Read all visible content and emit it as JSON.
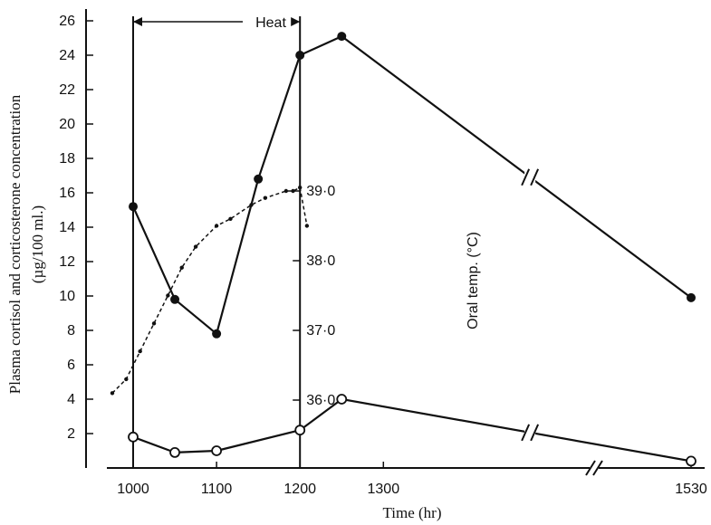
{
  "chart_data": {
    "type": "line",
    "xlabel": "Time (hr)",
    "ylabel": "Plasma cortisol and corticosterone concentration (µg/100 ml.)",
    "y2label": "Oral temp. (°C)",
    "x_ticks": [
      "1000",
      "1100",
      "1200",
      "1300",
      "1530"
    ],
    "y_ticks": [
      2,
      4,
      6,
      8,
      10,
      12,
      14,
      16,
      18,
      20,
      22,
      24,
      26
    ],
    "y2_ticks": [
      "36·0",
      "37·0",
      "38·0",
      "39·0"
    ],
    "ylim": [
      0,
      26
    ],
    "axis_breaks": [
      {
        "axis": "x",
        "between": [
          "1300",
          "1530"
        ]
      }
    ],
    "annotations": [
      {
        "text": "Heat",
        "type": "bracket",
        "from": "1000",
        "to": "1200"
      }
    ],
    "series": [
      {
        "marker": "filled-circle",
        "style": "solid",
        "x": [
          "1000",
          "1030",
          "1100",
          "1130",
          "1200",
          "1230",
          "1530"
        ],
        "values": [
          15.2,
          9.8,
          7.8,
          16.8,
          24.0,
          25.1,
          9.9
        ],
        "break_after_index": 5
      },
      {
        "marker": "open-circle",
        "style": "solid",
        "x": [
          "1000",
          "1030",
          "1100",
          "1200",
          "1230",
          "1530"
        ],
        "values": [
          1.8,
          0.9,
          1.0,
          2.2,
          4.0,
          0.4
        ],
        "break_after_index": 4
      },
      {
        "marker": "small-dot",
        "style": "dashed",
        "axis": "right",
        "x_minutes_from_1000": [
          -15,
          -5,
          5,
          15,
          25,
          35,
          45,
          60,
          70,
          85,
          95,
          110,
          115,
          120,
          125
        ],
        "values": [
          36.1,
          36.3,
          36.7,
          37.1,
          37.5,
          37.9,
          38.2,
          38.5,
          38.6,
          38.8,
          38.9,
          39.0,
          39.0,
          39.05,
          38.5
        ]
      }
    ]
  }
}
